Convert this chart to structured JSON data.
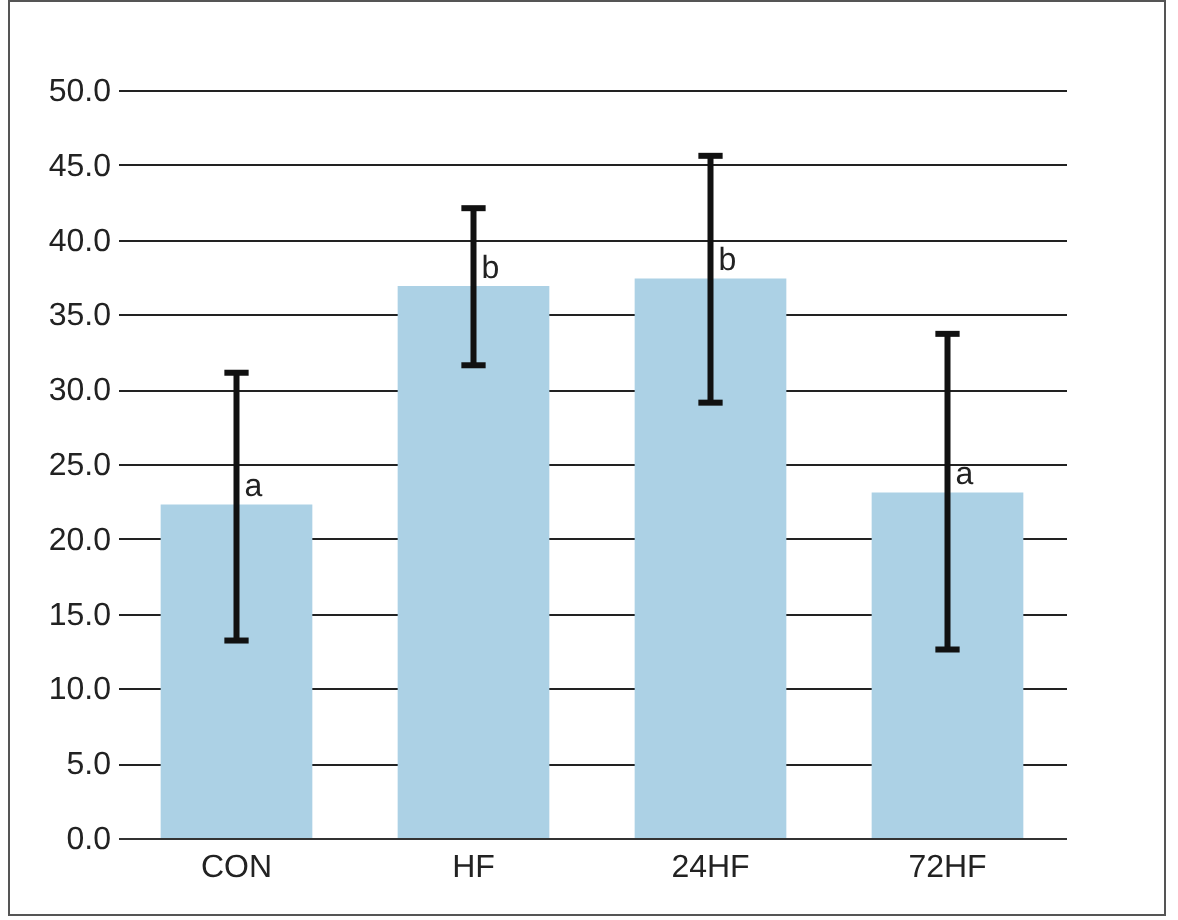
{
  "chart_data": {
    "type": "bar",
    "categories": [
      "CON",
      "HF",
      "24HF",
      "72HF"
    ],
    "values": [
      22.3,
      36.9,
      37.4,
      23.1
    ],
    "errors": [
      [
        13.2,
        31.1
      ],
      [
        31.6,
        42.1
      ],
      [
        29.1,
        45.6
      ],
      [
        12.6,
        33.7
      ]
    ],
    "color": "#acd1e5",
    "ylim": [
      0,
      50
    ],
    "yticks": [
      {
        "value": 0,
        "label": "0.0"
      },
      {
        "value": 5,
        "label": "5.0"
      },
      {
        "value": 10,
        "label": "10.0"
      },
      {
        "value": 15,
        "label": "15.0"
      },
      {
        "value": 20,
        "label": "20.0"
      },
      {
        "value": 25,
        "label": "25.0"
      },
      {
        "value": 30,
        "label": "30.0"
      },
      {
        "value": 35,
        "label": "35.0"
      },
      {
        "value": 40,
        "label": "40.0"
      },
      {
        "value": 45,
        "label": "45.0"
      },
      {
        "value": 50,
        "label": "50.0"
      }
    ],
    "grid": "y",
    "annotations": [
      {
        "text": "a",
        "x": "CON",
        "y": 22.3
      },
      {
        "text": "b",
        "x": "HF",
        "y": 36.9
      },
      {
        "text": "b",
        "x": "24HF",
        "y": 37.4
      },
      {
        "text": "a",
        "x": "72HF",
        "y": 23.1
      }
    ]
  }
}
